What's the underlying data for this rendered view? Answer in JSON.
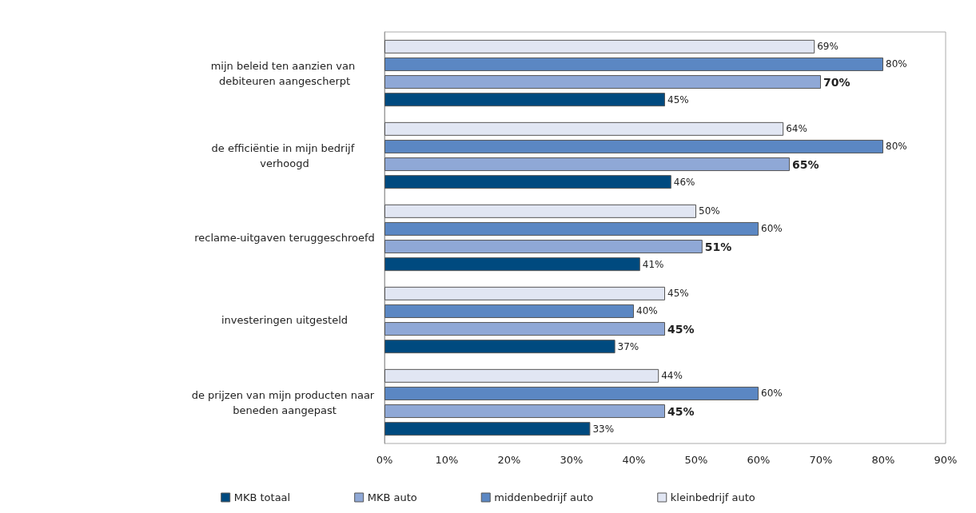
{
  "chart_data": {
    "type": "bar",
    "orientation": "horizontal",
    "categories": [
      "mijn beleid ten aanzien van debiteuren aangescherpt",
      "de efficiëntie in mijn bedrijf verhoogd",
      "reclame-uitgaven teruggeschroefd",
      "investeringen uitgesteld",
      "de prijzen van mijn producten naar beneden aangepast"
    ],
    "series": [
      {
        "name": "MKB totaal",
        "color": "#004a7f",
        "values": [
          45,
          46,
          41,
          37,
          33
        ],
        "value_labels": [
          "45%",
          "46%",
          "41%",
          "37%",
          "33%"
        ]
      },
      {
        "name": "MKB auto",
        "color": "#8fa8d6",
        "values": [
          70,
          65,
          51,
          45,
          45
        ],
        "value_labels": [
          "70%",
          "65%",
          "51%",
          "45%",
          "45%"
        ]
      },
      {
        "name": "middenbedrijf auto",
        "color": "#5b87c3",
        "values": [
          80,
          80,
          60,
          40,
          60
        ],
        "value_labels": [
          "80%",
          "80%",
          "60%",
          "40%",
          "60%"
        ]
      },
      {
        "name": "kleinbedrijf auto",
        "color": "#e1e6f3",
        "values": [
          69,
          64,
          50,
          45,
          44
        ],
        "value_labels": [
          "69%",
          "64%",
          "50%",
          "45%",
          "44%"
        ]
      }
    ],
    "xlim": [
      0,
      90
    ],
    "xticks": [
      {
        "value": 0,
        "label": "0%"
      },
      {
        "value": 10,
        "label": "10%"
      },
      {
        "value": 20,
        "label": "20%"
      },
      {
        "value": 30,
        "label": "30%"
      },
      {
        "value": 40,
        "label": "40%"
      },
      {
        "value": 50,
        "label": "50%"
      },
      {
        "value": 60,
        "label": "60%"
      },
      {
        "value": 70,
        "label": "70%"
      },
      {
        "value": 80,
        "label": "80%"
      },
      {
        "value": 90,
        "label": "90%"
      }
    ],
    "grid": false,
    "legend": "bottom"
  }
}
